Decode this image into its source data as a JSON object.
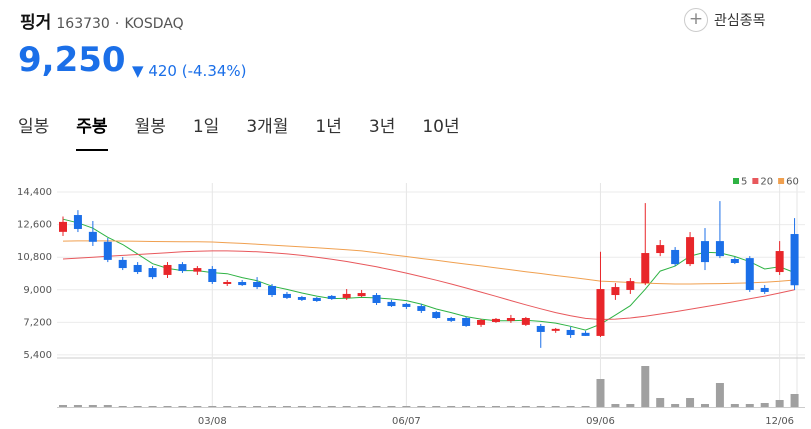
{
  "header": {
    "name": "핑거",
    "code": "163730",
    "market": "KOSDAQ",
    "watch": "관심종목",
    "price": "9,250",
    "change": "420",
    "change_pct": "(-4.34%)"
  },
  "tabs": [
    "일봉",
    "주봉",
    "월봉",
    "1일",
    "3개월",
    "1년",
    "3년",
    "10년"
  ],
  "selected_tab": 1,
  "chart_data": {
    "type": "candlestick",
    "categories": [
      null,
      null,
      null,
      null,
      null,
      null,
      null,
      null,
      null,
      null,
      "03/08",
      null,
      null,
      null,
      null,
      null,
      null,
      null,
      null,
      null,
      null,
      null,
      null,
      "06/07",
      null,
      null,
      null,
      null,
      null,
      null,
      null,
      null,
      null,
      null,
      null,
      null,
      "09/06",
      null,
      null,
      null,
      null,
      null,
      null,
      null,
      null,
      null,
      null,
      null,
      "12/06",
      null
    ],
    "open": [
      12200,
      13130,
      12200,
      11650,
      10650,
      10370,
      10200,
      9820,
      10420,
      10000,
      10150,
      9320,
      9430,
      9430,
      9210,
      8770,
      8600,
      8550,
      8660,
      8550,
      8650,
      8710,
      8330,
      8220,
      8100,
      7770,
      7440,
      7440,
      7060,
      7220,
      7280,
      7060,
      7000,
      6730,
      6780,
      6620,
      6450,
      8710,
      8990,
      9370,
      11030,
      11200,
      10420,
      11690,
      11690,
      10700,
      10750,
      9100,
      9980,
      12080
    ],
    "high": [
      13050,
      13400,
      12800,
      11860,
      10810,
      10530,
      10310,
      10530,
      10530,
      10310,
      10310,
      9540,
      9540,
      9700,
      9320,
      8880,
      8660,
      8600,
      8710,
      9040,
      8990,
      8820,
      8440,
      8270,
      8220,
      7830,
      7500,
      7500,
      7390,
      7440,
      7610,
      7500,
      7110,
      6890,
      6950,
      6730,
      11100,
      9370,
      9650,
      13790,
      11750,
      11360,
      12190,
      12410,
      13900,
      10810,
      10860,
      9260,
      11690,
      12960
    ],
    "low": [
      11970,
      12190,
      11420,
      10530,
      10090,
      9870,
      9590,
      9650,
      9930,
      9820,
      9320,
      9210,
      9210,
      9040,
      8600,
      8490,
      8380,
      8330,
      8440,
      8440,
      8600,
      8160,
      8050,
      7940,
      7720,
      7390,
      7220,
      6950,
      6950,
      7170,
      7170,
      7000,
      5790,
      6620,
      6340,
      6450,
      6390,
      8440,
      8770,
      9260,
      10860,
      10310,
      10310,
      10090,
      10750,
      10420,
      8880,
      8770,
      9820,
      8990
    ],
    "close": [
      12750,
      12360,
      11650,
      10650,
      10200,
      9980,
      9700,
      10370,
      10040,
      10200,
      9430,
      9430,
      9260,
      9150,
      8710,
      8550,
      8440,
      8380,
      8490,
      8770,
      8820,
      8270,
      8100,
      8050,
      7830,
      7440,
      7280,
      7000,
      7330,
      7390,
      7440,
      7440,
      6670,
      6840,
      6500,
      6450,
      9040,
      9150,
      9480,
      11030,
      11470,
      10420,
      11910,
      10530,
      10860,
      10480,
      8990,
      8880,
      11140,
      9250
    ],
    "up_color": "#e8262a",
    "down_color": "#1b6fe8",
    "series": [
      {
        "name": "5",
        "color": "#2fb344",
        "values": [
          12900,
          12700,
          12400,
          11900,
          11500,
          10970,
          10440,
          10180,
          10060,
          10060,
          9950,
          9890,
          9670,
          9500,
          9200,
          9020,
          8820,
          8650,
          8510,
          8530,
          8580,
          8550,
          8490,
          8400,
          8210,
          7940,
          7740,
          7520,
          7380,
          7290,
          7290,
          7320,
          7250,
          7160,
          6980,
          6770,
          7100,
          7600,
          8120,
          9030,
          10030,
          10310,
          10860,
          11070,
          11040,
          10840,
          10550,
          10150,
          10270,
          9950
        ]
      },
      {
        "name": "20",
        "color": "#e8585c",
        "values": [
          10700,
          10750,
          10800,
          10850,
          10900,
          10950,
          11000,
          11050,
          11100,
          11130,
          11150,
          11150,
          11130,
          11100,
          11050,
          10980,
          10900,
          10800,
          10690,
          10560,
          10420,
          10270,
          10100,
          9920,
          9730,
          9530,
          9320,
          9100,
          8870,
          8640,
          8400,
          8170,
          7950,
          7740,
          7560,
          7420,
          7360,
          7380,
          7440,
          7540,
          7660,
          7790,
          7920,
          8060,
          8200,
          8350,
          8500,
          8650,
          8820,
          9000
        ]
      },
      {
        "name": "60",
        "color": "#f0a050",
        "values": [
          11690,
          11700,
          11700,
          11700,
          11690,
          11680,
          11670,
          11660,
          11650,
          11650,
          11640,
          11600,
          11560,
          11520,
          11470,
          11420,
          11370,
          11320,
          11270,
          11210,
          11150,
          11050,
          10940,
          10840,
          10730,
          10630,
          10520,
          10420,
          10320,
          10210,
          10110,
          10000,
          9900,
          9790,
          9690,
          9590,
          9480,
          9440,
          9400,
          9370,
          9340,
          9320,
          9320,
          9330,
          9340,
          9360,
          9380,
          9420,
          9470,
          9540
        ]
      }
    ],
    "volume": [
      2,
      2,
      2,
      2,
      1,
      1,
      1,
      1,
      1,
      1,
      1,
      1,
      1,
      1,
      1,
      1,
      1,
      1,
      1,
      1,
      1,
      1,
      1,
      1,
      1,
      1,
      1,
      1,
      1,
      1,
      1,
      1,
      1,
      1,
      1,
      1,
      28,
      3,
      3,
      41,
      9,
      3,
      9,
      3,
      24,
      3,
      3,
      4,
      7,
      13
    ],
    "volume_color": "#a0a0a0",
    "volume_lim": [
      0,
      45
    ],
    "ylim": [
      5230,
      14900
    ],
    "yticks": [
      {
        "value": 5400,
        "label": "5,400"
      },
      {
        "value": 7200,
        "label": "7,200"
      },
      {
        "value": 9000,
        "label": "9,000"
      },
      {
        "value": 10800,
        "label": "10,800"
      },
      {
        "value": 12600,
        "label": "12,600"
      },
      {
        "value": 14400,
        "label": "14,400"
      }
    ],
    "grid": true,
    "legend": "top-right"
  }
}
